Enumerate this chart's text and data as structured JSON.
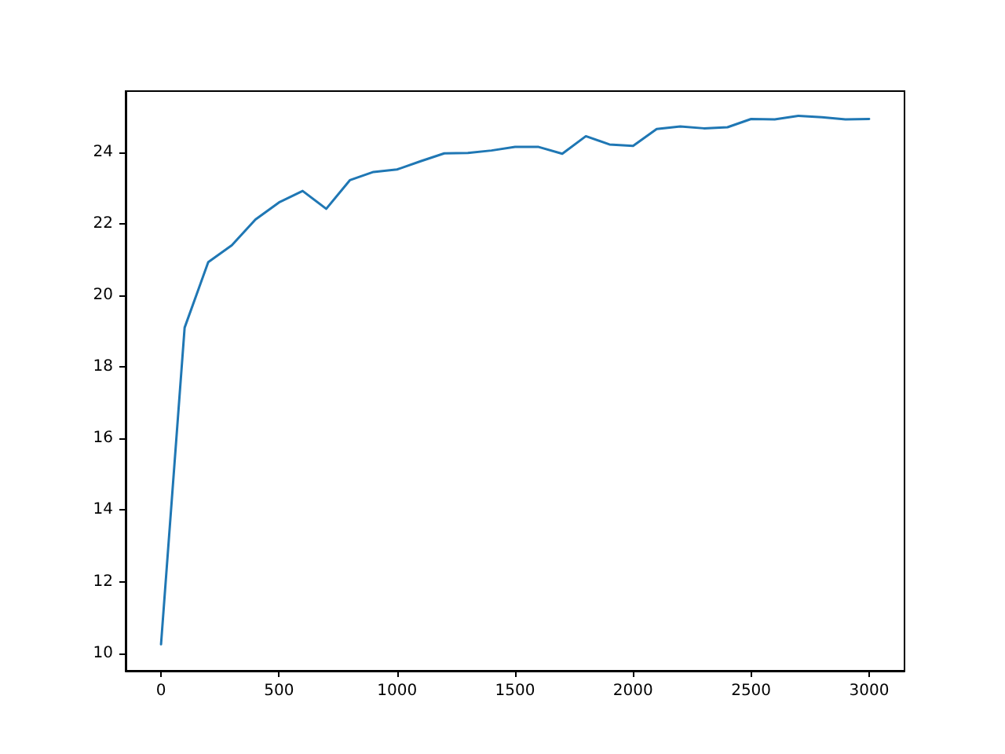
{
  "chart_data": {
    "type": "line",
    "x": [
      0,
      100,
      200,
      300,
      400,
      500,
      600,
      700,
      800,
      900,
      1000,
      1100,
      1200,
      1300,
      1400,
      1500,
      1600,
      1700,
      1800,
      1900,
      2000,
      2100,
      2200,
      2300,
      2400,
      2500,
      2600,
      2700,
      2800,
      2900,
      3000
    ],
    "series": [
      {
        "color": "#1f77b4",
        "values": [
          10.25,
          19.1,
          20.93,
          21.4,
          22.12,
          22.6,
          22.92,
          22.42,
          23.22,
          23.45,
          23.52,
          23.75,
          23.97,
          23.98,
          24.05,
          24.15,
          24.15,
          23.96,
          24.45,
          24.22,
          24.18,
          24.65,
          24.72,
          24.67,
          24.7,
          24.93,
          24.92,
          25.02,
          24.98,
          24.92,
          24.93
        ]
      }
    ],
    "xlim": [
      -150,
      3150
    ],
    "xticks": [
      0,
      500,
      1000,
      1500,
      2000,
      2500,
      3000
    ],
    "ylim": [
      9.51,
      25.71
    ],
    "yticks": [
      10,
      12,
      14,
      16,
      18,
      20,
      22,
      24
    ],
    "marker": "none",
    "line_style": "solid"
  }
}
